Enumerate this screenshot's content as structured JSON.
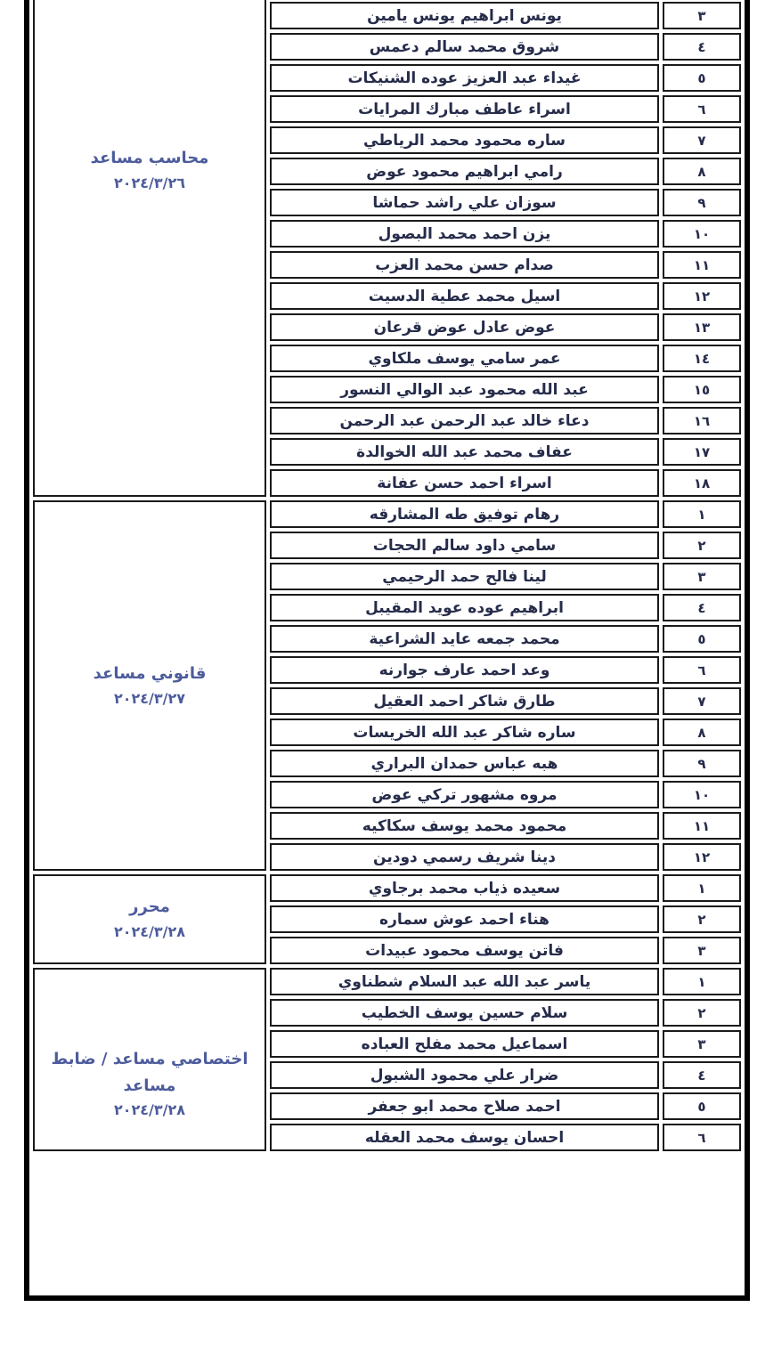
{
  "document": {
    "kind": "appointments-roster-table",
    "language": "ar",
    "direction": "rtl"
  },
  "colors": {
    "background": "#ffffff",
    "frame_border": "#000000",
    "cell_border": "#1a1a1a",
    "name_text": "#262c4a",
    "job_title_text": "#4d5c9c"
  },
  "sections": [
    {
      "title": "محاسب مساعد",
      "date": "٢٠٢٤/٣/٢٦",
      "rows": [
        {
          "no": "٣",
          "name": "يونس ابراهيم يونس يامين"
        },
        {
          "no": "٤",
          "name": "شروق محمد سالم دعمس"
        },
        {
          "no": "٥",
          "name": "غيداء عبد العزيز عوده الشنيكات"
        },
        {
          "no": "٦",
          "name": "اسراء عاطف مبارك المرايات"
        },
        {
          "no": "٧",
          "name": "ساره محمود محمد الرياطي"
        },
        {
          "no": "٨",
          "name": "رامي ابراهيم محمود عوض"
        },
        {
          "no": "٩",
          "name": "سوزان علي راشد حماشا"
        },
        {
          "no": "١٠",
          "name": "يزن احمد محمد البصول"
        },
        {
          "no": "١١",
          "name": "صدام حسن محمد العزب"
        },
        {
          "no": "١٢",
          "name": "اسيل محمد عطية الدسيت"
        },
        {
          "no": "١٣",
          "name": "عوض عادل عوض قرعان"
        },
        {
          "no": "١٤",
          "name": "عمر سامي يوسف ملكاوي"
        },
        {
          "no": "١٥",
          "name": "عبد الله محمود عبد الوالي النسور"
        },
        {
          "no": "١٦",
          "name": "دعاء خالد عبد الرحمن عبد الرحمن"
        },
        {
          "no": "١٧",
          "name": "عفاف محمد عبد الله الخوالدة"
        },
        {
          "no": "١٨",
          "name": "اسراء احمد حسن عفانة"
        }
      ]
    },
    {
      "title": "قانوني مساعد",
      "date": "٢٠٢٤/٣/٢٧",
      "rows": [
        {
          "no": "١",
          "name": "رهام توفيق طه المشارقه"
        },
        {
          "no": "٢",
          "name": "سامي داود سالم الحجات"
        },
        {
          "no": "٣",
          "name": "لينا فالح حمد الرحيمي"
        },
        {
          "no": "٤",
          "name": "ابراهيم عوده عويد المقيبل"
        },
        {
          "no": "٥",
          "name": "محمد جمعه عايد الشراعية"
        },
        {
          "no": "٦",
          "name": "وعد احمد عارف جوارنه"
        },
        {
          "no": "٧",
          "name": "طارق شاكر احمد العقيل"
        },
        {
          "no": "٨",
          "name": "ساره شاكر عبد الله الخريسات"
        },
        {
          "no": "٩",
          "name": "هبه عباس حمدان البراري"
        },
        {
          "no": "١٠",
          "name": "مروه مشهور تركي عوض"
        },
        {
          "no": "١١",
          "name": "محمود محمد يوسف سكاكيه"
        },
        {
          "no": "١٢",
          "name": "دينا شريف رسمي دودين"
        }
      ]
    },
    {
      "title": "محرر",
      "date": "٢٠٢٤/٣/٢٨",
      "rows": [
        {
          "no": "١",
          "name": "سعيده ذياب محمد برجاوي"
        },
        {
          "no": "٢",
          "name": "هناء احمد عوش سماره"
        },
        {
          "no": "٣",
          "name": "فاتن يوسف محمود عبيدات"
        }
      ]
    },
    {
      "title": "اختصاصي مساعد / ضابط مساعد",
      "date": "٢٠٢٤/٣/٢٨",
      "rows": [
        {
          "no": "١",
          "name": "ياسر عبد الله عبد السلام شطناوي"
        },
        {
          "no": "٢",
          "name": "سلام حسين يوسف الخطيب"
        },
        {
          "no": "٣",
          "name": "اسماعيل محمد مفلح العباده"
        },
        {
          "no": "٤",
          "name": "ضرار علي محمود الشبول"
        },
        {
          "no": "٥",
          "name": "احمد صلاح محمد ابو جعفر"
        },
        {
          "no": "٦",
          "name": "احسان يوسف محمد العقله"
        }
      ]
    }
  ]
}
